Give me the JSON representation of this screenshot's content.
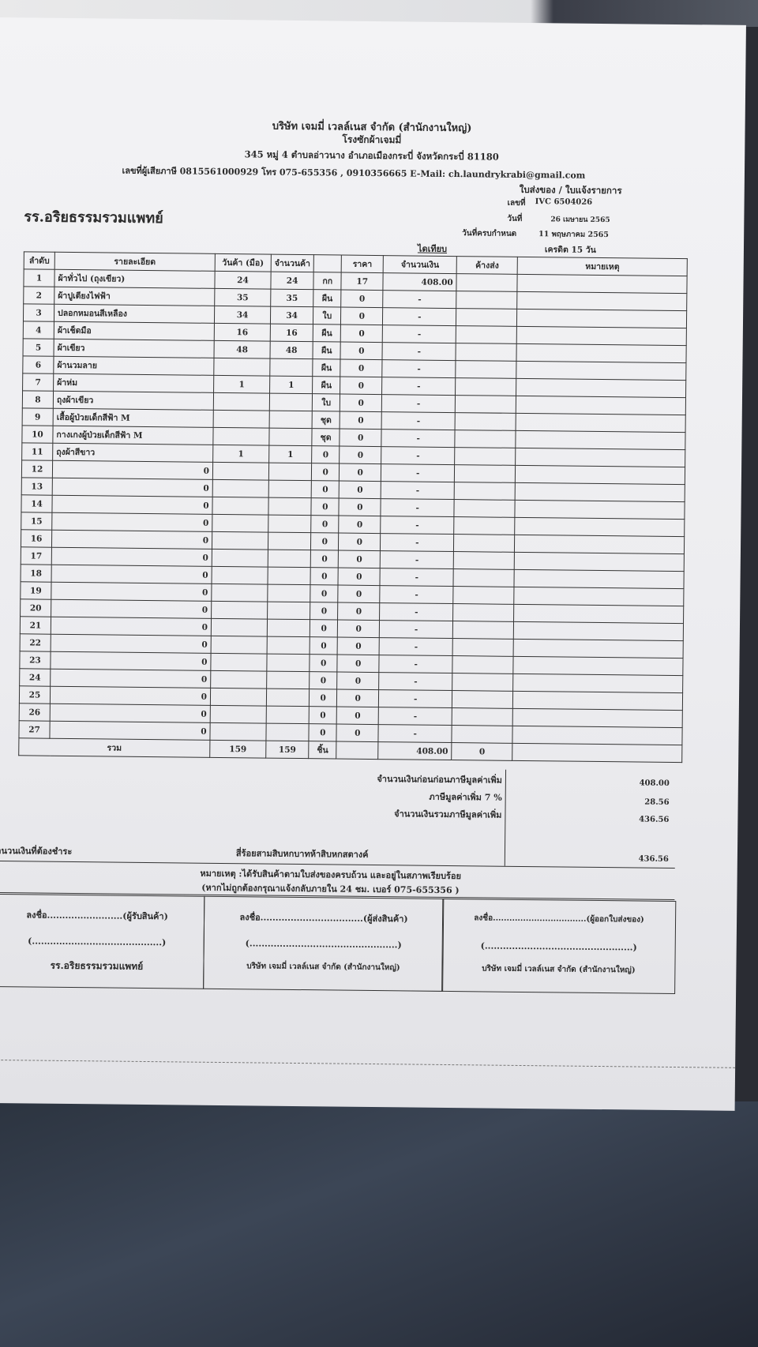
{
  "header": {
    "company": "บริษัท เจมมี่ เวลล์เนส จำกัด (สำนักงานใหญ่)",
    "subtitle": "โรงซักผ้าเจมมี่",
    "address": "345 หมู่ 4 ตำบลอ่าวนาง อำเภอเมืองกระบี่ จังหวัดกระบี่ 81180",
    "contact": "เลขที่ผู้เสียภาษี 0815561000929 โทร 075-655356 , 0910356665 E-Mail: ch.laundrykrabi@gmail.com",
    "doc_type": "ใบส่งของ / ใบแจ้งรายการ",
    "customer": "รร.อริยธรรมรวมแพทย์",
    "no_label": "เลขที่",
    "no_value": "IVC 6504026",
    "date_label": "วันที่",
    "date_value": "26 เมษายน 2565",
    "due_label": "วันที่ครบกำหนด",
    "due_value": "11 พฤษภาคม 2565",
    "payment_label": "ไดเทียบ",
    "credit": "เครดิต 15 วัน"
  },
  "table": {
    "columns": [
      "ลำดับ",
      "รายละเอียด",
      "วันค้า (มือ)",
      "จำนวนค้า",
      "",
      "ราคา",
      "จำนวนเงิน",
      "ค้างส่ง",
      "หมายเหตุ"
    ],
    "rows": [
      [
        "1",
        "ผ้าทั่วไป (ถุงเขียว)",
        "24",
        "24",
        "กก",
        "17",
        "408.00"
      ],
      [
        "2",
        "ผ้าปูเตียงไฟฟ้า",
        "35",
        "35",
        "ผืน",
        "0",
        "-"
      ],
      [
        "3",
        "ปลอกหมอนสีเหลือง",
        "34",
        "34",
        "ใบ",
        "0",
        "-"
      ],
      [
        "4",
        "ผ้าเช็ดมือ",
        "16",
        "16",
        "ผืน",
        "0",
        "-"
      ],
      [
        "5",
        "ผ้าเขียว",
        "48",
        "48",
        "ผืน",
        "0",
        "-"
      ],
      [
        "6",
        "ผ้านวมลาย",
        "",
        "",
        "ผืน",
        "0",
        "-"
      ],
      [
        "7",
        "ผ้าห่ม",
        "1",
        "1",
        "ผืน",
        "0",
        "-"
      ],
      [
        "8",
        "ถุงผ้าเขียว",
        "",
        "",
        "ใบ",
        "0",
        "-"
      ],
      [
        "9",
        "เสื้อผู้ป่วยเด็กสีฟ้า M",
        "",
        "",
        "ชุด",
        "0",
        "-"
      ],
      [
        "10",
        "กางเกงผู้ป่วยเด็กสีฟ้า M",
        "",
        "",
        "ชุด",
        "0",
        "-"
      ],
      [
        "11",
        "ถุงผ้าสีขาว",
        "1",
        "1",
        "0",
        "0",
        "-"
      ],
      [
        "12",
        "0",
        "",
        "",
        "0",
        "0",
        "-"
      ],
      [
        "13",
        "0",
        "",
        "",
        "0",
        "0",
        "-"
      ],
      [
        "14",
        "0",
        "",
        "",
        "0",
        "0",
        "-"
      ],
      [
        "15",
        "0",
        "",
        "",
        "0",
        "0",
        "-"
      ],
      [
        "16",
        "0",
        "",
        "",
        "0",
        "0",
        "-"
      ],
      [
        "17",
        "0",
        "",
        "",
        "0",
        "0",
        "-"
      ],
      [
        "18",
        "0",
        "",
        "",
        "0",
        "0",
        "-"
      ],
      [
        "19",
        "0",
        "",
        "",
        "0",
        "0",
        "-"
      ],
      [
        "20",
        "0",
        "",
        "",
        "0",
        "0",
        "-"
      ],
      [
        "21",
        "0",
        "",
        "",
        "0",
        "0",
        "-"
      ],
      [
        "22",
        "0",
        "",
        "",
        "0",
        "0",
        "-"
      ],
      [
        "23",
        "0",
        "",
        "",
        "0",
        "0",
        "-"
      ],
      [
        "24",
        "0",
        "",
        "",
        "0",
        "0",
        "-"
      ],
      [
        "25",
        "0",
        "",
        "",
        "0",
        "0",
        "-"
      ],
      [
        "26",
        "0",
        "",
        "",
        "0",
        "0",
        "-"
      ],
      [
        "27",
        "0",
        "",
        "",
        "0",
        "0",
        "-"
      ]
    ],
    "total": {
      "label": "รวม",
      "qty_out": "159",
      "qty_in": "159",
      "unit": "ชิ้น",
      "amount": "408.00",
      "pending": "0"
    }
  },
  "summary": {
    "subtotal_label": "จำนวนเงินก่อนก่อนภาษีมูลค่าเพิ่ม",
    "subtotal": "408.00",
    "vat_label": "ภาษีมูลค่าเพิ่ม 7 %",
    "vat": "28.56",
    "total_label": "จำนวนเงินรวมภาษีมูลค่าเพิ่ม",
    "total": "436.56",
    "payable_label": "จำนวนเงินที่ต้องชำระ",
    "payable_words": "สี่ร้อยสามสิบหกบาทห้าสิบหกสตางค์",
    "payable": "436.56"
  },
  "notes": {
    "line1": "หมายเหตุ :ได้รับสินค้าตามใบส่งของครบถ้วน และอยู่ในสภาพเรียบร้อย",
    "line2": "(หากไม่ถูกต้องกรุณาแจ้งกลับภายใน 24 ชม. เบอร์ 075-655356 )"
  },
  "signatures": [
    {
      "sign": "ลงชื่อ.........................(ผู้รับสินค้า)",
      "name": "(...........................................)",
      "org": "รร.อริยธรรมรวมแพทย์"
    },
    {
      "sign": "ลงชื่อ..................................(ผู้ส่งสินค้า)",
      "name": "(.................................................)",
      "org": "บริษัท เจมมี่ เวลล์เนส จำกัด (สำนักงานใหญ่)"
    },
    {
      "sign": "ลงชื่อ..................................(ผู้ออกใบส่งของ)",
      "name": "(.................................................)",
      "org": "บริษัท เจมมี่ เวลล์เนส จำกัด (สำนักงานใหญ่)"
    }
  ],
  "colors": {
    "paper": "#f0f0f2",
    "ink": "#2b2b2b",
    "background": "#2a2c33"
  }
}
